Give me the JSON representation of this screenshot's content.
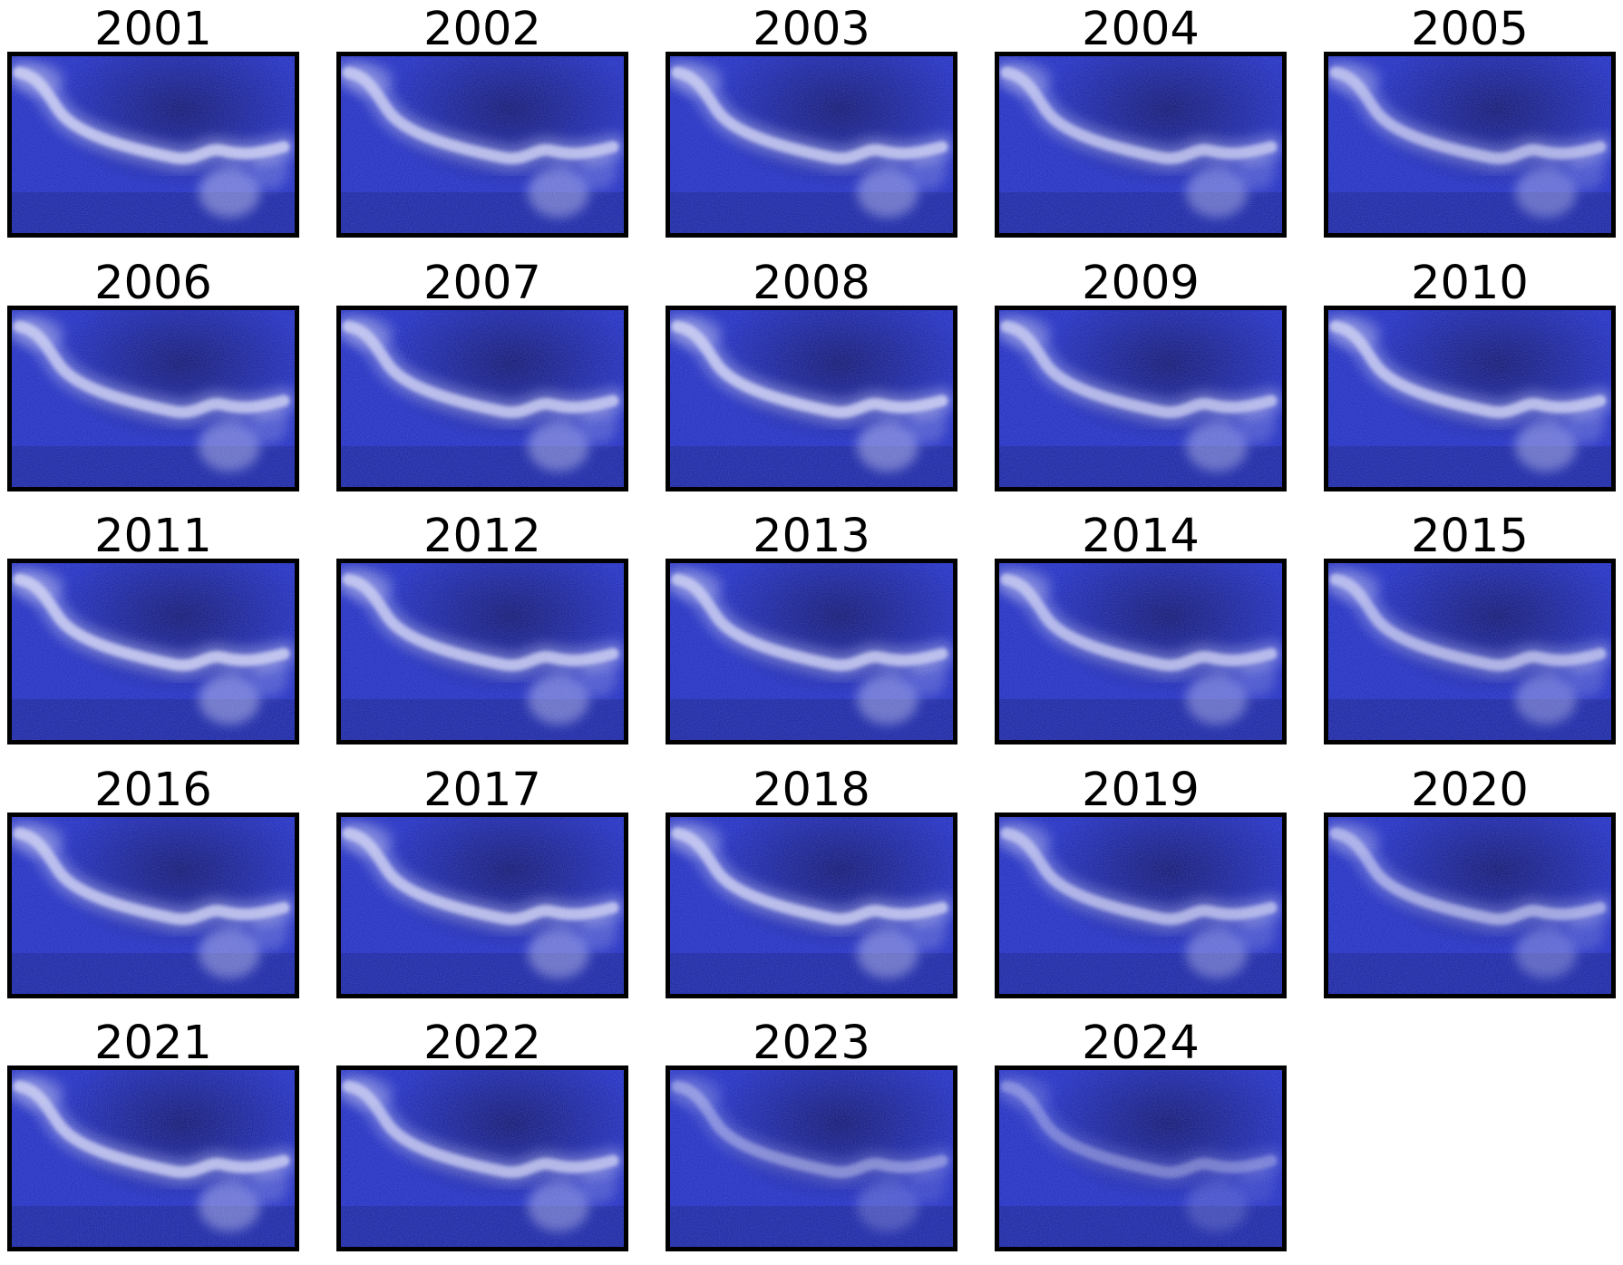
{
  "figure": {
    "panels": [
      {
        "year": "2001",
        "brightness": 1.0
      },
      {
        "year": "2002",
        "brightness": 0.95
      },
      {
        "year": "2003",
        "brightness": 0.95
      },
      {
        "year": "2004",
        "brightness": 0.9
      },
      {
        "year": "2005",
        "brightness": 0.85
      },
      {
        "year": "2006",
        "brightness": 0.95
      },
      {
        "year": "2007",
        "brightness": 0.95
      },
      {
        "year": "2008",
        "brightness": 1.0
      },
      {
        "year": "2009",
        "brightness": 0.9
      },
      {
        "year": "2010",
        "brightness": 0.95
      },
      {
        "year": "2011",
        "brightness": 1.0
      },
      {
        "year": "2012",
        "brightness": 0.95
      },
      {
        "year": "2013",
        "brightness": 0.95
      },
      {
        "year": "2014",
        "brightness": 0.9
      },
      {
        "year": "2015",
        "brightness": 0.85
      },
      {
        "year": "2016",
        "brightness": 0.95
      },
      {
        "year": "2017",
        "brightness": 0.95
      },
      {
        "year": "2018",
        "brightness": 0.95
      },
      {
        "year": "2019",
        "brightness": 0.85
      },
      {
        "year": "2020",
        "brightness": 0.75
      },
      {
        "year": "2021",
        "brightness": 0.95
      },
      {
        "year": "2022",
        "brightness": 0.9
      },
      {
        "year": "2023",
        "brightness": 0.55
      },
      {
        "year": "2024",
        "brightness": 0.45
      }
    ]
  },
  "colors": {
    "background": "#ffffff",
    "frame": "#000000",
    "image_dark": "#0a0f6e",
    "image_mid": "#1a28c0",
    "image_light": "#c9ccf2"
  }
}
